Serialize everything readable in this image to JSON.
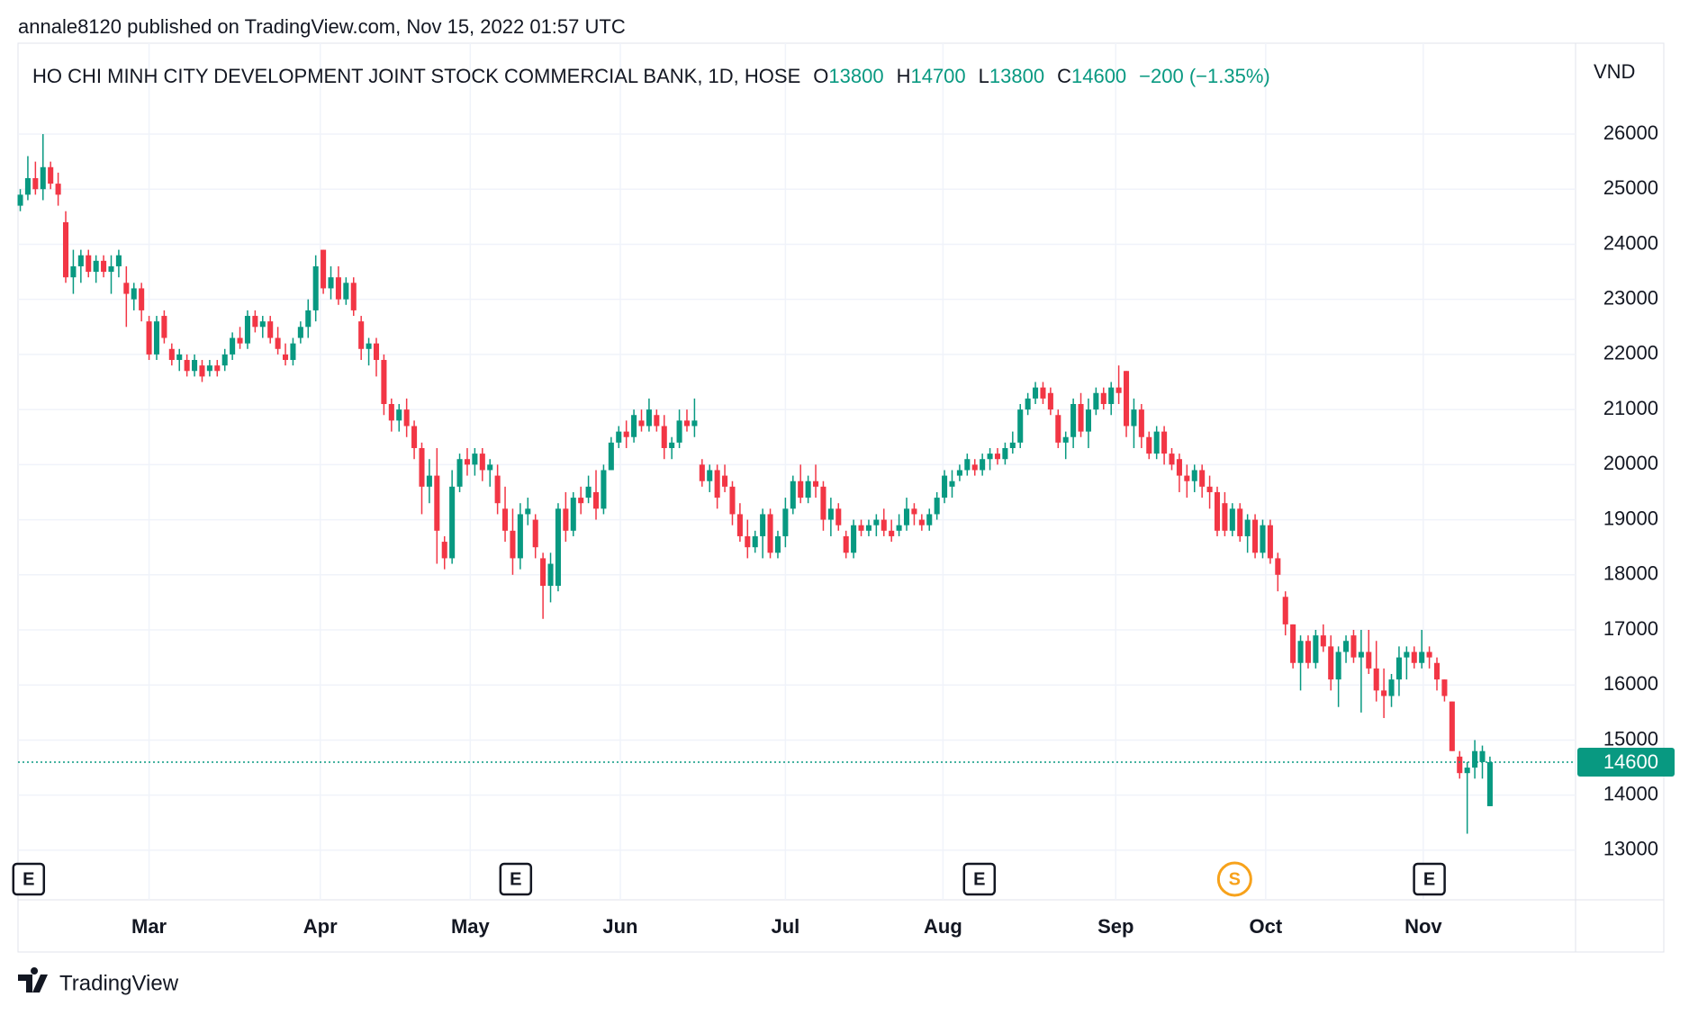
{
  "chart_data": {
    "type": "candlestick",
    "published": "annale8120 published on TradingView.com, Nov 15, 2022 01:57 UTC",
    "title": "HO CHI MINH CITY DEVELOPMENT JOINT STOCK COMMERCIAL BANK, 1D, HOSE",
    "ohlc_labels": [
      "O",
      "H",
      "L",
      "C"
    ],
    "change": "−200 (−1.35%)",
    "currency": "VND",
    "brand": "TradingView",
    "up_color": "#089981",
    "down_color": "#f23645",
    "grid": true,
    "xlim": [
      -0.3,
      205.3
    ],
    "xticks": [
      {
        "value": 17,
        "label": "Mar"
      },
      {
        "value": 39.6,
        "label": "Apr"
      },
      {
        "value": 59.4,
        "label": "May"
      },
      {
        "value": 79.2,
        "label": "Jun"
      },
      {
        "value": 101,
        "label": "Jul"
      },
      {
        "value": 121.8,
        "label": "Aug"
      },
      {
        "value": 144.6,
        "label": "Sep"
      },
      {
        "value": 164.4,
        "label": "Oct"
      },
      {
        "value": 185.2,
        "label": "Nov"
      }
    ],
    "ylim": [
      12100,
      27650
    ],
    "yticks": [
      13000,
      14000,
      15000,
      16000,
      17000,
      18000,
      19000,
      20000,
      21000,
      22000,
      23000,
      24000,
      25000,
      26000
    ],
    "events": [
      {
        "label": "E",
        "x": 1.1
      },
      {
        "label": "E",
        "x": 65.4
      },
      {
        "label": "E",
        "x": 126.6
      },
      {
        "label": "S",
        "x": 160.3
      },
      {
        "label": "E",
        "x": 186
      }
    ],
    "candles": [
      [
        24700,
        25000,
        24600,
        24900
      ],
      [
        24900,
        25600,
        24800,
        25200
      ],
      [
        25200,
        25500,
        24900,
        25000
      ],
      [
        25000,
        26000,
        24800,
        25400
      ],
      [
        25400,
        25500,
        25000,
        25100
      ],
      [
        25100,
        25300,
        24700,
        24900
      ],
      [
        24400,
        24600,
        23300,
        23400
      ],
      [
        23400,
        23900,
        23100,
        23600
      ],
      [
        23600,
        23900,
        23300,
        23800
      ],
      [
        23800,
        23900,
        23400,
        23500
      ],
      [
        23500,
        23800,
        23300,
        23700
      ],
      [
        23700,
        23800,
        23400,
        23500
      ],
      [
        23500,
        23800,
        23100,
        23600
      ],
      [
        23600,
        23900,
        23400,
        23800
      ],
      [
        23300,
        23600,
        22500,
        23100
      ],
      [
        23000,
        23300,
        22800,
        23200
      ],
      [
        23200,
        23300,
        22600,
        22800
      ],
      [
        22600,
        22700,
        21900,
        22000
      ],
      [
        22000,
        22700,
        21900,
        22600
      ],
      [
        22700,
        22800,
        22200,
        22300
      ],
      [
        22100,
        22200,
        21800,
        21900
      ],
      [
        21900,
        22100,
        21700,
        22000
      ],
      [
        21900,
        22000,
        21600,
        21700
      ],
      [
        21700,
        22000,
        21600,
        21900
      ],
      [
        21800,
        21900,
        21500,
        21600
      ],
      [
        21700,
        21900,
        21600,
        21800
      ],
      [
        21800,
        21900,
        21600,
        21700
      ],
      [
        21800,
        22100,
        21700,
        22000
      ],
      [
        22000,
        22400,
        21900,
        22300
      ],
      [
        22300,
        22500,
        22100,
        22200
      ],
      [
        22200,
        22800,
        22100,
        22700
      ],
      [
        22700,
        22800,
        22400,
        22500
      ],
      [
        22500,
        22700,
        22300,
        22600
      ],
      [
        22600,
        22700,
        22200,
        22300
      ],
      [
        22300,
        22500,
        22000,
        22100
      ],
      [
        22000,
        22200,
        21800,
        21900
      ],
      [
        21900,
        22300,
        21800,
        22200
      ],
      [
        22300,
        22600,
        22200,
        22500
      ],
      [
        22500,
        23000,
        22300,
        22800
      ],
      [
        22800,
        23800,
        22600,
        23600
      ],
      [
        23900,
        23900,
        23100,
        23200
      ],
      [
        23200,
        23600,
        23000,
        23400
      ],
      [
        23400,
        23600,
        22900,
        23000
      ],
      [
        23000,
        23400,
        22900,
        23300
      ],
      [
        23300,
        23400,
        22700,
        22800
      ],
      [
        22600,
        22700,
        21900,
        22100
      ],
      [
        22100,
        22300,
        21800,
        22200
      ],
      [
        22200,
        22300,
        21600,
        21900
      ],
      [
        21900,
        22000,
        20900,
        21100
      ],
      [
        21100,
        21200,
        20600,
        20800
      ],
      [
        20800,
        21100,
        20600,
        21000
      ],
      [
        21000,
        21200,
        20500,
        20700
      ],
      [
        20700,
        20800,
        20100,
        20300
      ],
      [
        20300,
        20400,
        19100,
        19600
      ],
      [
        19600,
        20100,
        19300,
        19800
      ],
      [
        19800,
        20300,
        18200,
        18800
      ],
      [
        18600,
        18700,
        18100,
        18300
      ],
      [
        18300,
        19900,
        18200,
        19600
      ],
      [
        19600,
        20200,
        19500,
        20100
      ],
      [
        20100,
        20300,
        19800,
        20000
      ],
      [
        20000,
        20300,
        19800,
        20200
      ],
      [
        20200,
        20300,
        19700,
        19900
      ],
      [
        19900,
        20100,
        19600,
        20000
      ],
      [
        19800,
        20000,
        19100,
        19300
      ],
      [
        19200,
        19600,
        18600,
        18800
      ],
      [
        18800,
        19200,
        18000,
        18300
      ],
      [
        18300,
        19300,
        18100,
        19100
      ],
      [
        19100,
        19400,
        18900,
        19200
      ],
      [
        19000,
        19100,
        18300,
        18500
      ],
      [
        18300,
        18400,
        17200,
        17800
      ],
      [
        17800,
        18400,
        17500,
        18200
      ],
      [
        17800,
        19300,
        17700,
        19200
      ],
      [
        19200,
        19500,
        18600,
        18800
      ],
      [
        18800,
        19500,
        18700,
        19400
      ],
      [
        19400,
        19600,
        19100,
        19300
      ],
      [
        19400,
        19800,
        19300,
        19600
      ],
      [
        19500,
        19900,
        19000,
        19200
      ],
      [
        19200,
        20000,
        19100,
        19900
      ],
      [
        19900,
        20500,
        19900,
        20400
      ],
      [
        20400,
        20700,
        20300,
        20600
      ],
      [
        20600,
        20800,
        20300,
        20500
      ],
      [
        20500,
        21000,
        20400,
        20900
      ],
      [
        20800,
        21000,
        20600,
        20700
      ],
      [
        20700,
        21200,
        20600,
        21000
      ],
      [
        20900,
        21000,
        20600,
        20700
      ],
      [
        20700,
        20900,
        20100,
        20300
      ],
      [
        20300,
        20500,
        20100,
        20400
      ],
      [
        20400,
        21000,
        20300,
        20800
      ],
      [
        20800,
        21000,
        20600,
        20700
      ],
      [
        20700,
        21200,
        20500,
        20800
      ],
      [
        20000,
        20100,
        19600,
        19700
      ],
      [
        19700,
        20000,
        19500,
        19900
      ],
      [
        19900,
        20000,
        19200,
        19400
      ],
      [
        19800,
        20000,
        19500,
        19600
      ],
      [
        19600,
        19700,
        18900,
        19100
      ],
      [
        19100,
        19300,
        18600,
        18700
      ],
      [
        18700,
        19000,
        18300,
        18500
      ],
      [
        18500,
        18800,
        18400,
        18700
      ],
      [
        18700,
        19200,
        18300,
        19100
      ],
      [
        19100,
        19200,
        18300,
        18400
      ],
      [
        18400,
        18800,
        18300,
        18700
      ],
      [
        18700,
        19400,
        18500,
        19200
      ],
      [
        19200,
        19800,
        19100,
        19700
      ],
      [
        19700,
        20000,
        19300,
        19400
      ],
      [
        19400,
        19800,
        19300,
        19700
      ],
      [
        19700,
        20000,
        19400,
        19600
      ],
      [
        19600,
        19700,
        18800,
        19000
      ],
      [
        19000,
        19400,
        18700,
        19200
      ],
      [
        19200,
        19300,
        18800,
        18900
      ],
      [
        18700,
        18800,
        18300,
        18400
      ],
      [
        18400,
        19000,
        18300,
        18900
      ],
      [
        18900,
        19000,
        18700,
        18800
      ],
      [
        18800,
        19000,
        18700,
        18900
      ],
      [
        18900,
        19100,
        18700,
        19000
      ],
      [
        19000,
        19200,
        18700,
        18800
      ],
      [
        18800,
        19000,
        18600,
        18700
      ],
      [
        18800,
        19100,
        18700,
        18900
      ],
      [
        18900,
        19400,
        18800,
        19200
      ],
      [
        19200,
        19300,
        18900,
        19100
      ],
      [
        19000,
        19100,
        18800,
        18900
      ],
      [
        18900,
        19200,
        18800,
        19100
      ],
      [
        19100,
        19500,
        19000,
        19400
      ],
      [
        19400,
        19900,
        19300,
        19800
      ],
      [
        19600,
        19900,
        19400,
        19700
      ],
      [
        19800,
        20000,
        19700,
        19900
      ],
      [
        19900,
        20200,
        19800,
        20100
      ],
      [
        20000,
        20100,
        19800,
        19900
      ],
      [
        19900,
        20200,
        19800,
        20100
      ],
      [
        20100,
        20300,
        19900,
        20200
      ],
      [
        20200,
        20300,
        20000,
        20100
      ],
      [
        20100,
        20400,
        20000,
        20300
      ],
      [
        20300,
        20600,
        20200,
        20400
      ],
      [
        20400,
        21100,
        20300,
        21000
      ],
      [
        21000,
        21300,
        20900,
        21200
      ],
      [
        21200,
        21500,
        21100,
        21400
      ],
      [
        21400,
        21500,
        21100,
        21200
      ],
      [
        21300,
        21400,
        20900,
        21000
      ],
      [
        20900,
        21000,
        20300,
        20400
      ],
      [
        20400,
        20600,
        20100,
        20500
      ],
      [
        20500,
        21200,
        20300,
        21100
      ],
      [
        21100,
        21300,
        20500,
        20600
      ],
      [
        20600,
        21200,
        20300,
        21000
      ],
      [
        21000,
        21400,
        20900,
        21300
      ],
      [
        21300,
        21400,
        21000,
        21100
      ],
      [
        21100,
        21500,
        20900,
        21400
      ],
      [
        21400,
        21800,
        21100,
        21300
      ],
      [
        21700,
        21700,
        20500,
        20700
      ],
      [
        20700,
        21200,
        20300,
        21000
      ],
      [
        21000,
        21100,
        20300,
        20500
      ],
      [
        20500,
        20600,
        20100,
        20200
      ],
      [
        20200,
        20700,
        20100,
        20600
      ],
      [
        20600,
        20700,
        20000,
        20200
      ],
      [
        20200,
        20300,
        19900,
        20000
      ],
      [
        20100,
        20200,
        19500,
        19800
      ],
      [
        19800,
        20000,
        19400,
        19700
      ],
      [
        19700,
        20000,
        19500,
        19900
      ],
      [
        19900,
        20000,
        19400,
        19600
      ],
      [
        19600,
        19800,
        19200,
        19500
      ],
      [
        19500,
        19600,
        18700,
        18800
      ],
      [
        19300,
        19500,
        18700,
        18800
      ],
      [
        18800,
        19300,
        18700,
        19200
      ],
      [
        19200,
        19300,
        18600,
        18700
      ],
      [
        18700,
        19100,
        18400,
        19000
      ],
      [
        19000,
        19100,
        18300,
        18400
      ],
      [
        18400,
        19000,
        18300,
        18900
      ],
      [
        18900,
        19000,
        18200,
        18300
      ],
      [
        18300,
        18400,
        17700,
        18000
      ],
      [
        17600,
        17700,
        16900,
        17100
      ],
      [
        17100,
        17100,
        16300,
        16400
      ],
      [
        16400,
        16900,
        15900,
        16800
      ],
      [
        16800,
        16900,
        16300,
        16400
      ],
      [
        16400,
        17000,
        16300,
        16900
      ],
      [
        16900,
        17100,
        16600,
        16700
      ],
      [
        16700,
        16900,
        15900,
        16100
      ],
      [
        16100,
        16700,
        15600,
        16600
      ],
      [
        16600,
        16900,
        16400,
        16800
      ],
      [
        16900,
        17000,
        16400,
        16500
      ],
      [
        16500,
        17000,
        15500,
        16600
      ],
      [
        16600,
        17000,
        16200,
        16300
      ],
      [
        16300,
        16800,
        15700,
        15900
      ],
      [
        15900,
        16300,
        15400,
        15800
      ],
      [
        15800,
        16200,
        15600,
        16100
      ],
      [
        16100,
        16700,
        15800,
        16500
      ],
      [
        16500,
        16700,
        16100,
        16600
      ],
      [
        16600,
        16700,
        16300,
        16400
      ],
      [
        16400,
        17000,
        16300,
        16600
      ],
      [
        16600,
        16700,
        16300,
        16500
      ],
      [
        16400,
        16500,
        15900,
        16100
      ],
      [
        16100,
        16100,
        15700,
        15800
      ],
      [
        15700,
        15700,
        14800,
        14800
      ],
      [
        14700,
        14800,
        14300,
        14400
      ],
      [
        14400,
        14600,
        13300,
        14500
      ],
      [
        14500,
        15000,
        14300,
        14800
      ],
      [
        14600,
        14900,
        14300,
        14800
      ],
      [
        13800,
        14700,
        13800,
        14600
      ]
    ]
  }
}
